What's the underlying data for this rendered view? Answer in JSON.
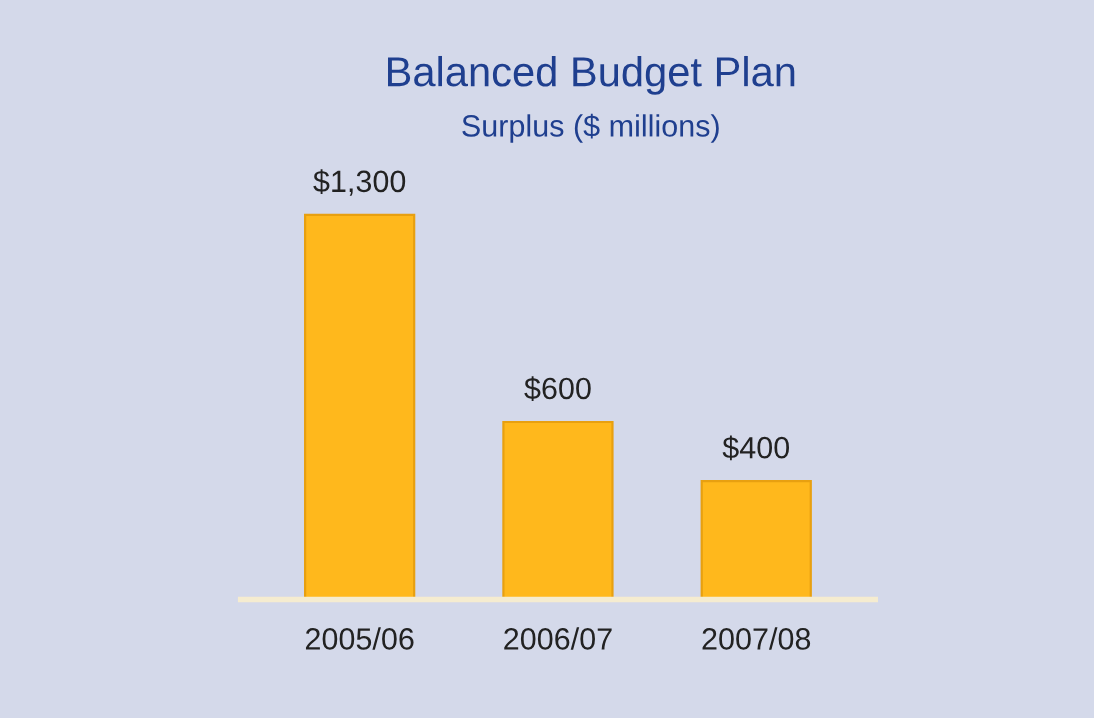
{
  "chart_data": {
    "type": "bar",
    "title": "Balanced Budget Plan",
    "subtitle": "Surplus ($ millions)",
    "categories": [
      "2005/06",
      "2006/07",
      "2007/08"
    ],
    "values": [
      1300,
      600,
      400
    ],
    "color": "#ffb81c",
    "value_labels": [
      "$1,300",
      "$600",
      "$400"
    ],
    "grid": false,
    "legend": false
  }
}
